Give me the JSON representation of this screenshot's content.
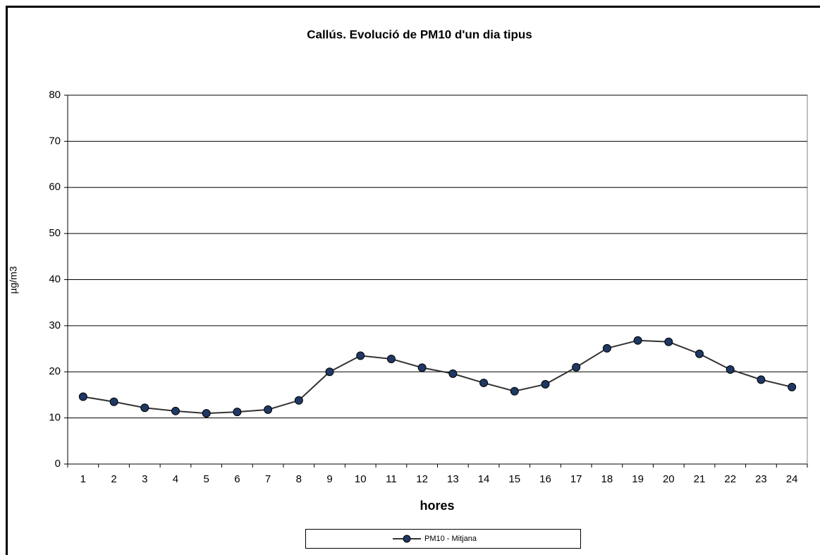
{
  "chart_data": {
    "type": "line",
    "title": "Callús. Evolució de PM10  d'un dia tipus",
    "x_label": "hores",
    "y_label": "µg/m3",
    "categories": [
      1,
      2,
      3,
      4,
      5,
      6,
      7,
      8,
      9,
      10,
      11,
      12,
      13,
      14,
      15,
      16,
      17,
      18,
      19,
      20,
      21,
      22,
      23,
      24
    ],
    "series": [
      {
        "name": "PM10 -  Mitjana",
        "color": "#1f3864",
        "values": [
          14.6,
          13.5,
          12.2,
          11.5,
          11.0,
          11.3,
          11.8,
          13.8,
          20.0,
          23.5,
          22.8,
          20.9,
          19.6,
          17.6,
          15.8,
          17.3,
          21.0,
          25.1,
          26.8,
          26.5,
          23.9,
          20.5,
          18.3,
          16.7
        ]
      }
    ],
    "ylim": [
      0,
      80
    ],
    "yticks": [
      0,
      10,
      20,
      30,
      40,
      50,
      60,
      70,
      80
    ],
    "grid": true,
    "legend": "bottom"
  }
}
